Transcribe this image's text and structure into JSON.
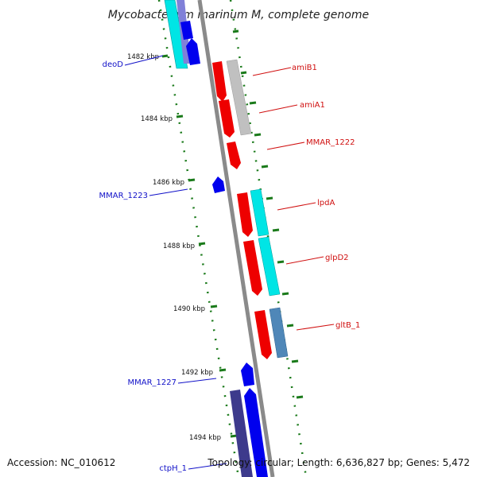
{
  "title": "Mycobacterium marinum M, complete genome",
  "footer": {
    "accession": "Accession: NC_010612",
    "topology": "Topology: circular; Length: 6,636,827 bp; Genes: 5,472"
  },
  "ticks": [
    {
      "label": "1482 kbp"
    },
    {
      "label": "1484 kbp"
    },
    {
      "label": "1486 kbp"
    },
    {
      "label": "1488 kbp"
    },
    {
      "label": "1490 kbp"
    },
    {
      "label": "1492 kbp"
    },
    {
      "label": "1494 kbp"
    }
  ],
  "labels": [
    {
      "name": "deoD",
      "color": "#1010c8"
    },
    {
      "name": "amiB1",
      "color": "#d01010"
    },
    {
      "name": "amiA1",
      "color": "#d01010"
    },
    {
      "name": "MMAR_1222",
      "color": "#d01010"
    },
    {
      "name": "MMAR_1223",
      "color": "#1010c8"
    },
    {
      "name": "lpdA",
      "color": "#d01010"
    },
    {
      "name": "glpD2",
      "color": "#d01010"
    },
    {
      "name": "gltB_1",
      "color": "#d01010"
    },
    {
      "name": "MMAR_1227",
      "color": "#1010c8"
    },
    {
      "name": "ctpH_1",
      "color": "#1010c8"
    }
  ],
  "colors": {
    "backbone": "#8a8a8a",
    "forward_gene": "#ee0000",
    "reverse_gene": "#0000ee",
    "cyan_feature": "#00e5e5",
    "gray_feature": "#c0c0c0",
    "steel_feature": "#4f87b8",
    "purple_feature": "#3d3a8c",
    "tick_mark": "#1a7a1a"
  }
}
